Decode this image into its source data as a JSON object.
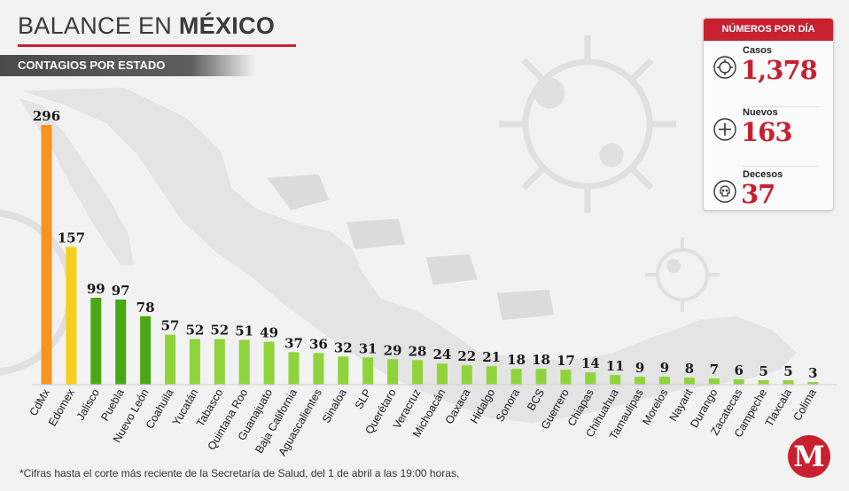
{
  "header": {
    "title_light": "BALANCE EN ",
    "title_bold": "MÉXICO",
    "subtitle": "CONTAGIOS POR ESTADO"
  },
  "colors": {
    "accent": "#c8202f",
    "bar_top1": "#f7931e",
    "bar_top2": "#f8cf1c",
    "bar_dark_green": "#4aa814",
    "bar_light_green": "#8fd43a"
  },
  "chart_data": {
    "type": "bar",
    "title": "CONTAGIOS POR ESTADO",
    "xlabel": "",
    "ylabel": "",
    "ylim": [
      0,
      296
    ],
    "categories": [
      "CdMx",
      "Edomex",
      "Jalisco",
      "Puebla",
      "Nuevo León",
      "Coahuila",
      "Yucatán",
      "Tabasco",
      "Quintana Roo",
      "Guanajuato",
      "Baja California",
      "Aguascalientes",
      "Sinaloa",
      "SLP",
      "Querétaro",
      "Veracruz",
      "Michoacán",
      "Oaxaca",
      "Hidalgo",
      "Sonora",
      "BCS",
      "Guerrero",
      "Chiapas",
      "Chihuahua",
      "Tamaulipas",
      "Morelos",
      "Nayarit",
      "Durango",
      "Zacatecas",
      "Campeche",
      "Tlaxcala",
      "Colima"
    ],
    "values": [
      296,
      157,
      99,
      97,
      78,
      57,
      52,
      52,
      51,
      49,
      37,
      36,
      32,
      31,
      29,
      28,
      24,
      22,
      21,
      18,
      18,
      17,
      14,
      11,
      9,
      9,
      8,
      7,
      6,
      5,
      5,
      3
    ],
    "value_labels": [
      "296",
      "157",
      "99",
      "97",
      "78",
      "57",
      "52",
      "52",
      "51",
      "49",
      "37",
      "36",
      "32",
      "31",
      "29",
      "28",
      "24",
      "22",
      "21",
      "18",
      "18",
      "17",
      "14",
      "11",
      "9",
      "9",
      "8",
      "7",
      "6",
      "5",
      "5",
      "3"
    ],
    "bar_color_keys": [
      "bar_top1",
      "bar_top2",
      "bar_dark_green",
      "bar_dark_green",
      "bar_dark_green",
      "bar_light_green",
      "bar_light_green",
      "bar_light_green",
      "bar_light_green",
      "bar_light_green",
      "bar_light_green",
      "bar_light_green",
      "bar_light_green",
      "bar_light_green",
      "bar_light_green",
      "bar_light_green",
      "bar_light_green",
      "bar_light_green",
      "bar_light_green",
      "bar_light_green",
      "bar_light_green",
      "bar_light_green",
      "bar_light_green",
      "bar_light_green",
      "bar_light_green",
      "bar_light_green",
      "bar_light_green",
      "bar_light_green",
      "bar_light_green",
      "bar_light_green",
      "bar_light_green",
      "bar_light_green"
    ],
    "grid": false,
    "legend": "none"
  },
  "stats_panel": {
    "title": "NÚMEROS POR DÍA",
    "items": [
      {
        "label": "Casos",
        "value": "1,378",
        "icon": "virus-icon"
      },
      {
        "label": "Nuevos",
        "value": "163",
        "icon": "plus-circle-icon"
      },
      {
        "label": "Decesos",
        "value": "37",
        "icon": "skull-icon"
      }
    ]
  },
  "footnote": "*Cifras hasta el corte más reciente de la Secretaría de Salud, del 1 de abril a las 19:00 horas.",
  "logo": {
    "letter": "M",
    "icon": "milenio-logo-icon"
  }
}
